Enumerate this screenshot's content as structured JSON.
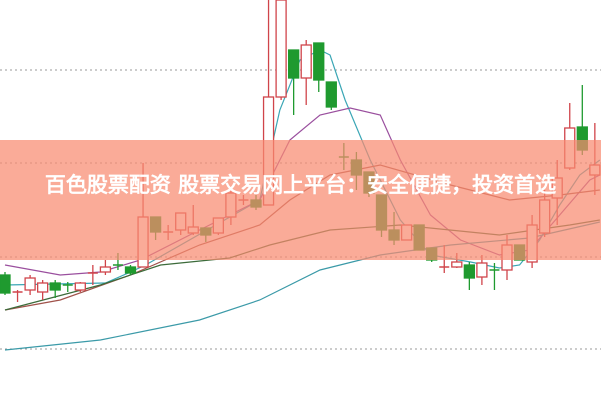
{
  "headline": "百色股票配资 股票交易网上平台：安全便捷，投资首选",
  "colors": {
    "up": "#d0444a",
    "down": "#1f9a2f",
    "banner": "#f88a70",
    "grid": "#999999"
  },
  "chart_data": {
    "type": "candlestick",
    "title": "",
    "xlabel": "",
    "ylabel": "",
    "ylim": [
      0,
      40
    ],
    "grid": true,
    "grid_levels": [
      33,
      23.7,
      14.3,
      5.1
    ],
    "candles": [
      {
        "o": 12.5,
        "h": 12.8,
        "l": 10.5,
        "c": 10.7,
        "dir": "down"
      },
      {
        "o": 10.8,
        "h": 11.0,
        "l": 9.8,
        "c": 10.8,
        "dir": "up"
      },
      {
        "o": 11.0,
        "h": 12.5,
        "l": 10.5,
        "c": 12.2,
        "dir": "up"
      },
      {
        "o": 10.8,
        "h": 12.0,
        "l": 10.0,
        "c": 11.7,
        "dir": "up"
      },
      {
        "o": 11.7,
        "h": 12.0,
        "l": 10.2,
        "c": 11.0,
        "dir": "down"
      },
      {
        "o": 11.5,
        "h": 11.8,
        "l": 10.8,
        "c": 11.5,
        "dir": "down"
      },
      {
        "o": 11.0,
        "h": 11.8,
        "l": 10.8,
        "c": 11.7,
        "dir": "up"
      },
      {
        "o": 12.7,
        "h": 13.5,
        "l": 11.5,
        "c": 12.7,
        "dir": "up"
      },
      {
        "o": 12.8,
        "h": 14.0,
        "l": 12.5,
        "c": 13.3,
        "dir": "up"
      },
      {
        "o": 13.5,
        "h": 14.7,
        "l": 13.0,
        "c": 13.5,
        "dir": "down"
      },
      {
        "o": 13.3,
        "h": 13.5,
        "l": 12.5,
        "c": 12.7,
        "dir": "down"
      },
      {
        "o": 13.3,
        "h": 23.7,
        "l": 13.3,
        "c": 18.3,
        "dir": "up"
      },
      {
        "o": 18.3,
        "h": 18.3,
        "l": 16.0,
        "c": 16.8,
        "dir": "down"
      },
      {
        "o": 16.8,
        "h": 17.5,
        "l": 16.0,
        "c": 16.8,
        "dir": "up"
      },
      {
        "o": 17.0,
        "h": 18.7,
        "l": 16.5,
        "c": 18.7,
        "dir": "up"
      },
      {
        "o": 16.7,
        "h": 19.5,
        "l": 16.5,
        "c": 17.3,
        "dir": "up"
      },
      {
        "o": 17.2,
        "h": 17.2,
        "l": 15.8,
        "c": 16.5,
        "dir": "down"
      },
      {
        "o": 16.7,
        "h": 18.2,
        "l": 16.5,
        "c": 18.2,
        "dir": "up"
      },
      {
        "o": 18.3,
        "h": 21.0,
        "l": 17.5,
        "c": 20.7,
        "dir": "up"
      },
      {
        "o": 20.0,
        "h": 20.5,
        "l": 19.5,
        "c": 20.0,
        "dir": "up"
      },
      {
        "o": 20.0,
        "h": 20.5,
        "l": 19.0,
        "c": 19.3,
        "dir": "down"
      },
      {
        "o": 19.5,
        "h": 40.0,
        "l": 19.5,
        "c": 30.3,
        "dir": "up"
      },
      {
        "o": 30.3,
        "h": 40.0,
        "l": 30.0,
        "c": 40.0,
        "dir": "up"
      },
      {
        "o": 35.0,
        "h": 35.0,
        "l": 28.5,
        "c": 32.2,
        "dir": "down"
      },
      {
        "o": 32.2,
        "h": 36.0,
        "l": 29.5,
        "c": 35.5,
        "dir": "up"
      },
      {
        "o": 35.7,
        "h": 35.7,
        "l": 30.8,
        "c": 32.0,
        "dir": "down"
      },
      {
        "o": 31.8,
        "h": 31.8,
        "l": 29.0,
        "c": 29.3,
        "dir": "down"
      },
      {
        "o": 24.3,
        "h": 25.7,
        "l": 23.0,
        "c": 24.3,
        "dir": "down"
      },
      {
        "o": 24.0,
        "h": 24.8,
        "l": 21.0,
        "c": 22.5,
        "dir": "down"
      },
      {
        "o": 22.8,
        "h": 22.8,
        "l": 20.3,
        "c": 20.7,
        "dir": "down"
      },
      {
        "o": 20.5,
        "h": 20.5,
        "l": 16.3,
        "c": 17.0,
        "dir": "down"
      },
      {
        "o": 17.0,
        "h": 18.8,
        "l": 15.5,
        "c": 16.0,
        "dir": "down"
      },
      {
        "o": 16.0,
        "h": 17.5,
        "l": 16.0,
        "c": 17.5,
        "dir": "up"
      },
      {
        "o": 17.5,
        "h": 17.5,
        "l": 15.0,
        "c": 15.0,
        "dir": "down"
      },
      {
        "o": 15.2,
        "h": 15.2,
        "l": 13.8,
        "c": 14.0,
        "dir": "down"
      },
      {
        "o": 13.3,
        "h": 15.5,
        "l": 12.7,
        "c": 13.3,
        "dir": "up"
      },
      {
        "o": 13.3,
        "h": 14.7,
        "l": 13.2,
        "c": 13.8,
        "dir": "up"
      },
      {
        "o": 13.5,
        "h": 13.8,
        "l": 11.0,
        "c": 12.2,
        "dir": "down"
      },
      {
        "o": 12.3,
        "h": 14.5,
        "l": 11.5,
        "c": 13.7,
        "dir": "up"
      },
      {
        "o": 13.0,
        "h": 13.7,
        "l": 11.0,
        "c": 13.0,
        "dir": "down"
      },
      {
        "o": 13.0,
        "h": 16.5,
        "l": 12.0,
        "c": 15.5,
        "dir": "up"
      },
      {
        "o": 15.5,
        "h": 15.5,
        "l": 14.0,
        "c": 14.0,
        "dir": "down"
      },
      {
        "o": 13.8,
        "h": 18.5,
        "l": 13.2,
        "c": 17.5,
        "dir": "up"
      },
      {
        "o": 16.7,
        "h": 21.0,
        "l": 16.3,
        "c": 20.0,
        "dir": "up"
      },
      {
        "o": 20.2,
        "h": 24.0,
        "l": 17.5,
        "c": 22.2,
        "dir": "up"
      },
      {
        "o": 23.2,
        "h": 29.7,
        "l": 23.0,
        "c": 27.2,
        "dir": "up"
      },
      {
        "o": 27.3,
        "h": 31.5,
        "l": 24.5,
        "c": 25.0,
        "dir": "down"
      },
      {
        "o": 22.5,
        "h": 27.7,
        "l": 20.5,
        "c": 23.5,
        "dir": "up"
      }
    ],
    "lines": [
      {
        "color": "#3aa6b5",
        "points": [
          [
            0,
            11.5
          ],
          [
            8,
            11.7
          ],
          [
            10,
            12.8
          ],
          [
            11.2,
            13.5
          ],
          [
            20.3,
            20
          ],
          [
            21.9,
            29
          ],
          [
            23.5,
            34
          ],
          [
            25.1,
            35
          ],
          [
            25.9,
            34.5
          ],
          [
            27.1,
            30
          ],
          [
            29.1,
            24
          ],
          [
            31.5,
            18
          ],
          [
            33.9,
            14.5
          ],
          [
            37.1,
            13.8
          ],
          [
            39.4,
            13.2
          ],
          [
            41,
            13.5
          ],
          [
            42.6,
            16
          ],
          [
            44.2,
            19.5
          ],
          [
            45.8,
            22.5
          ],
          [
            47.4,
            24
          ]
        ]
      },
      {
        "color": "#9a4f9e",
        "points": [
          [
            0,
            13.5
          ],
          [
            4.4,
            12.5
          ],
          [
            7.6,
            12.8
          ],
          [
            10.8,
            14
          ],
          [
            15.5,
            17
          ],
          [
            20.3,
            20
          ],
          [
            22.7,
            26
          ],
          [
            25.1,
            28.5
          ],
          [
            27.5,
            29.2
          ],
          [
            29.9,
            28.5
          ],
          [
            31.5,
            24
          ],
          [
            33.9,
            18.5
          ],
          [
            36.3,
            16
          ],
          [
            39.4,
            14.5
          ],
          [
            41.8,
            15
          ],
          [
            44.2,
            18.5
          ],
          [
            46.6,
            22
          ],
          [
            47.4,
            22.5
          ]
        ]
      },
      {
        "color": "#a0524a",
        "points": [
          [
            0,
            9
          ],
          [
            4.4,
            10
          ],
          [
            10,
            12.5
          ],
          [
            15.5,
            15.5
          ],
          [
            20.3,
            17.5
          ],
          [
            22.7,
            20
          ],
          [
            25.9,
            22.5
          ],
          [
            29.9,
            23.5
          ],
          [
            35.5,
            21.5
          ],
          [
            40.2,
            20
          ],
          [
            44.2,
            20.5
          ],
          [
            47.4,
            21
          ]
        ]
      },
      {
        "color": "#3c6b3a",
        "points": [
          [
            0,
            9
          ],
          [
            7.6,
            11.5
          ],
          [
            12.4,
            13.5
          ],
          [
            17.9,
            14.2
          ],
          [
            21.1,
            15.5
          ],
          [
            25.9,
            17
          ],
          [
            31.5,
            17.5
          ],
          [
            39.4,
            16.5
          ],
          [
            45,
            17.5
          ],
          [
            47.4,
            18
          ]
        ]
      },
      {
        "color": "#3b9aa8",
        "points": [
          [
            0,
            5
          ],
          [
            7.6,
            6
          ],
          [
            15.5,
            8
          ],
          [
            20.3,
            10
          ],
          [
            25.1,
            13
          ],
          [
            29.9,
            14.5
          ],
          [
            35.5,
            15.5
          ],
          [
            41.8,
            16.2
          ],
          [
            47.4,
            17.8
          ]
        ]
      }
    ]
  }
}
